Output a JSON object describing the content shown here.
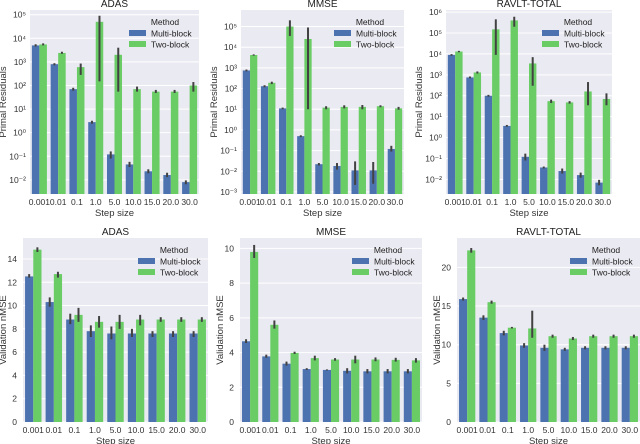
{
  "chart_data": [
    {
      "type": "bar",
      "scale": "log",
      "title": "ADAS",
      "xlabel": "Step size",
      "ylabel": "Primal Residuals",
      "ylim_log10": [
        -2.6,
        5.2
      ],
      "yticks_exp": [
        -2,
        -1,
        0,
        1,
        2,
        3,
        4,
        5
      ],
      "categories": [
        "0.001",
        "0.01",
        "0.1",
        "1.0",
        "5.0",
        "10.0",
        "15.0",
        "20.0",
        "30.0"
      ],
      "legend": {
        "title": "Method",
        "position": "top-right"
      },
      "series": [
        {
          "name": "Multi-block",
          "values": [
            5000,
            800,
            70,
            2.8,
            0.12,
            0.045,
            0.023,
            0.016,
            0.008
          ],
          "err_low": [
            4500,
            720,
            60,
            2.4,
            0.08,
            0.035,
            0.019,
            0.013,
            0.0065
          ],
          "err_high": [
            5600,
            880,
            80,
            3.2,
            0.16,
            0.058,
            0.028,
            0.02,
            0.0095
          ]
        },
        {
          "name": "Two-block",
          "values": [
            5500,
            2400,
            600,
            50000,
            2000,
            70,
            55,
            55,
            100
          ],
          "err_low": [
            5000,
            2200,
            280,
            150,
            55,
            55,
            48,
            48,
            55
          ],
          "err_high": [
            6100,
            2700,
            850,
            90000,
            4000,
            90,
            65,
            65,
            140
          ]
        }
      ]
    },
    {
      "type": "bar",
      "scale": "log",
      "title": "MMSE",
      "xlabel": "Step size",
      "ylabel": "Primal Residuals",
      "ylim_log10": [
        -3.1,
        5.8
      ],
      "yticks_exp": [
        -3,
        -2,
        -1,
        0,
        1,
        2,
        3,
        4,
        5
      ],
      "categories": [
        "0.001",
        "0.01",
        "0.1",
        "1.0",
        "5.0",
        "10.0",
        "15.0",
        "20.0",
        "30.0"
      ],
      "legend": {
        "title": "Method",
        "position": "top-right"
      },
      "series": [
        {
          "name": "Multi-block",
          "values": [
            750,
            130,
            11,
            0.5,
            0.022,
            0.018,
            0.011,
            0.011,
            0.12
          ],
          "err_low": [
            680,
            115,
            10,
            0.45,
            0.019,
            0.012,
            0.0022,
            0.0025,
            0.09
          ],
          "err_high": [
            830,
            145,
            12,
            0.55,
            0.025,
            0.025,
            0.03,
            0.028,
            0.17
          ]
        },
        {
          "name": "Two-block",
          "values": [
            4200,
            190,
            100000,
            25000,
            12,
            13,
            13,
            14,
            11
          ],
          "err_low": [
            3900,
            165,
            35000,
            10,
            10,
            11,
            10,
            12.5,
            9.5
          ],
          "err_high": [
            4500,
            215,
            200000,
            90000,
            14,
            15.5,
            16,
            15.5,
            13
          ]
        }
      ]
    },
    {
      "type": "bar",
      "scale": "log",
      "title": "RAVLT-TOTAL",
      "xlabel": "Step size",
      "ylabel": "Primal Residuals",
      "ylim_log10": [
        -2.7,
        6.1
      ],
      "yticks_exp": [
        -2,
        -1,
        0,
        1,
        2,
        3,
        4,
        5,
        6
      ],
      "categories": [
        "0.001",
        "0.01",
        "0.1",
        "1.0",
        "5.0",
        "10.0",
        "15.0",
        "20.0",
        "30.0"
      ],
      "legend": {
        "title": "Method",
        "position": "top-right"
      },
      "series": [
        {
          "name": "Multi-block",
          "values": [
            9000,
            750,
            100,
            3.6,
            0.12,
            0.037,
            0.025,
            0.016,
            0.007
          ],
          "err_low": [
            8200,
            680,
            90,
            3.3,
            0.08,
            0.033,
            0.019,
            0.012,
            0.0052
          ],
          "err_high": [
            9800,
            830,
            110,
            4.0,
            0.17,
            0.041,
            0.033,
            0.021,
            0.0095
          ]
        },
        {
          "name": "Two-block",
          "values": [
            13000,
            1300,
            150000,
            400000,
            3500,
            55,
            48,
            160,
            70
          ],
          "err_low": [
            12000,
            1150,
            9000,
            200000,
            300,
            45,
            42,
            35,
            35
          ],
          "err_high": [
            14000,
            1450,
            450000,
            600000,
            7000,
            65,
            55,
            450,
            130
          ]
        }
      ]
    },
    {
      "type": "bar",
      "scale": "linear",
      "title": "ADAS",
      "xlabel": "Step size",
      "ylabel": "Validation nMSE",
      "ylim": [
        0,
        15.8
      ],
      "yticks": [
        0,
        2,
        4,
        6,
        8,
        10,
        12,
        14
      ],
      "categories": [
        "0.001",
        "0.01",
        "0.1",
        "1.0",
        "5.0",
        "10.0",
        "15.0",
        "20.0",
        "30.0"
      ],
      "legend": {
        "title": "Method",
        "position": "top-right"
      },
      "series": [
        {
          "name": "Multi-block",
          "values": [
            12.5,
            10.3,
            8.8,
            7.8,
            7.6,
            7.6,
            7.6,
            7.6,
            7.6
          ],
          "err_low": [
            12.4,
            9.9,
            8.4,
            7.3,
            7.1,
            7.3,
            7.3,
            7.3,
            7.3
          ],
          "err_high": [
            12.7,
            10.7,
            9.3,
            8.3,
            8.2,
            8.0,
            7.8,
            7.8,
            7.8
          ]
        },
        {
          "name": "Two-block",
          "values": [
            14.8,
            12.7,
            9.2,
            8.6,
            8.6,
            8.8,
            8.8,
            8.8,
            8.8
          ],
          "err_low": [
            14.6,
            12.4,
            8.6,
            8.1,
            8.0,
            8.3,
            8.6,
            8.6,
            8.6
          ],
          "err_high": [
            15.0,
            12.9,
            9.8,
            9.1,
            9.2,
            9.2,
            9.0,
            9.0,
            9.0
          ]
        }
      ]
    },
    {
      "type": "bar",
      "scale": "linear",
      "title": "MMSE",
      "xlabel": "Step size",
      "ylabel": "Validation nMSE",
      "ylim": [
        0,
        10.6
      ],
      "yticks": [
        0,
        2,
        4,
        6,
        8,
        10
      ],
      "categories": [
        "0.001",
        "0.01",
        "0.1",
        "1.0",
        "5.0",
        "10.0",
        "15.0",
        "20.0",
        "30.0"
      ],
      "legend": {
        "title": "Method",
        "position": "top-right"
      },
      "series": [
        {
          "name": "Multi-block",
          "values": [
            4.65,
            3.78,
            3.36,
            3.05,
            3.0,
            2.95,
            2.92,
            2.92,
            2.92
          ],
          "err_low": [
            4.55,
            3.7,
            3.25,
            3.0,
            2.97,
            2.8,
            2.8,
            2.8,
            2.8
          ],
          "err_high": [
            4.77,
            3.88,
            3.48,
            3.1,
            3.03,
            3.1,
            3.05,
            3.05,
            3.05
          ]
        },
        {
          "name": "Two-block",
          "values": [
            9.8,
            5.6,
            3.98,
            3.68,
            3.6,
            3.6,
            3.6,
            3.58,
            3.55
          ],
          "err_low": [
            9.45,
            5.38,
            3.92,
            3.55,
            3.53,
            3.38,
            3.5,
            3.48,
            3.42
          ],
          "err_high": [
            10.2,
            5.85,
            4.05,
            3.82,
            3.68,
            3.82,
            3.72,
            3.7,
            3.68
          ]
        }
      ]
    },
    {
      "type": "bar",
      "scale": "linear",
      "title": "RAVLT-TOTAL",
      "xlabel": "Step size",
      "ylabel": "Validation nMSE",
      "ylim": [
        0,
        23.8
      ],
      "yticks": [
        0,
        5,
        10,
        15,
        20
      ],
      "categories": [
        "0.001",
        "0.01",
        "0.1",
        "1.0",
        "5.0",
        "10.0",
        "15.0",
        "20.0",
        "30.0"
      ],
      "legend": {
        "title": "Method",
        "position": "top-right"
      },
      "series": [
        {
          "name": "Multi-block",
          "values": [
            15.9,
            13.5,
            11.5,
            9.9,
            9.6,
            9.4,
            9.6,
            9.6,
            9.6
          ],
          "err_low": [
            15.7,
            13.2,
            11.2,
            9.6,
            9.2,
            9.2,
            9.4,
            9.4,
            9.4
          ],
          "err_high": [
            16.1,
            13.8,
            11.8,
            10.2,
            10.0,
            9.6,
            9.8,
            9.8,
            9.8
          ]
        },
        {
          "name": "Two-block",
          "values": [
            22.2,
            15.5,
            12.2,
            12.1,
            11.1,
            10.8,
            11.1,
            11.1,
            11.1
          ],
          "err_low": [
            21.9,
            15.3,
            12.1,
            10.9,
            10.9,
            10.6,
            10.9,
            10.9,
            10.9
          ],
          "err_high": [
            22.5,
            15.7,
            12.3,
            14.4,
            11.3,
            11.0,
            11.3,
            11.3,
            11.3
          ]
        }
      ]
    }
  ],
  "colors": {
    "multi_block": "#4c72b0",
    "two_block": "#6acc65",
    "axes_bg": "#eaeaf2",
    "grid": "#ffffff",
    "errbar": "#424242"
  }
}
